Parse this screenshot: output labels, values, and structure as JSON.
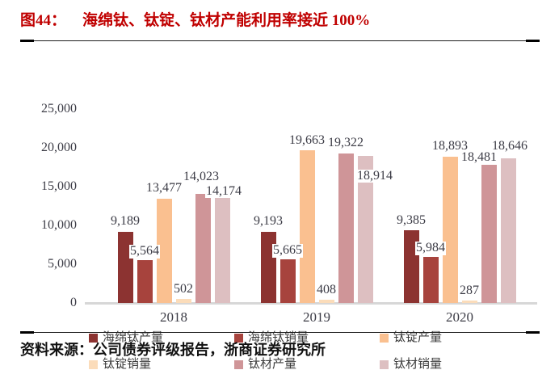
{
  "figure": {
    "label": "图44：",
    "title": "海绵钛、钛锭、钛材产能利用率接近 100%"
  },
  "source": {
    "text": "资料来源：公司债券评级报告，浙商证券研究所"
  },
  "colors": {
    "title_red": "#C00000",
    "axis_text": "#3c3c46",
    "baseline": "#d7d7d7"
  },
  "chart_data": {
    "type": "bar",
    "categories": [
      "2018",
      "2019",
      "2020"
    ],
    "series": [
      {
        "name": "海绵钛产量",
        "color": "#8C3331",
        "values": [
          9189,
          9193,
          9385
        ],
        "labels": [
          "9,189",
          "9,193",
          "9,385"
        ]
      },
      {
        "name": "海绵钛销量",
        "color": "#A7433D",
        "values": [
          5564,
          5665,
          5984
        ],
        "labels": [
          "5,564",
          "5,665",
          "5,984"
        ]
      },
      {
        "name": "钛锭产量",
        "color": "#FAC090",
        "values": [
          13477,
          19663,
          18893
        ],
        "labels": [
          "13,477",
          "19,663",
          "18,893"
        ]
      },
      {
        "name": "钛锭销量",
        "color": "#FBDCBA",
        "values": [
          502,
          408,
          287
        ],
        "labels": [
          "502",
          "408",
          "287"
        ]
      },
      {
        "name": "钛材产量",
        "color": "#CF9598",
        "values": [
          14023,
          19322,
          18481
        ],
        "labels": [
          "14,023",
          "19,322",
          "18,481"
        ]
      },
      {
        "name": "钛材销量",
        "color": "#DDBFC1",
        "values": [
          14174,
          18914,
          18646
        ],
        "labels": [
          "14,174",
          "18,914",
          "18,646"
        ]
      }
    ],
    "ylim": [
      0,
      25000
    ],
    "yticks": [
      "25,000",
      "20,000",
      "15,000",
      "10,000",
      "5,000",
      "0"
    ],
    "grid": false,
    "legend_position": "bottom",
    "title": "海绵钛、钛锭、钛材产能利用率接近 100%",
    "xlabel": "",
    "ylabel": ""
  }
}
